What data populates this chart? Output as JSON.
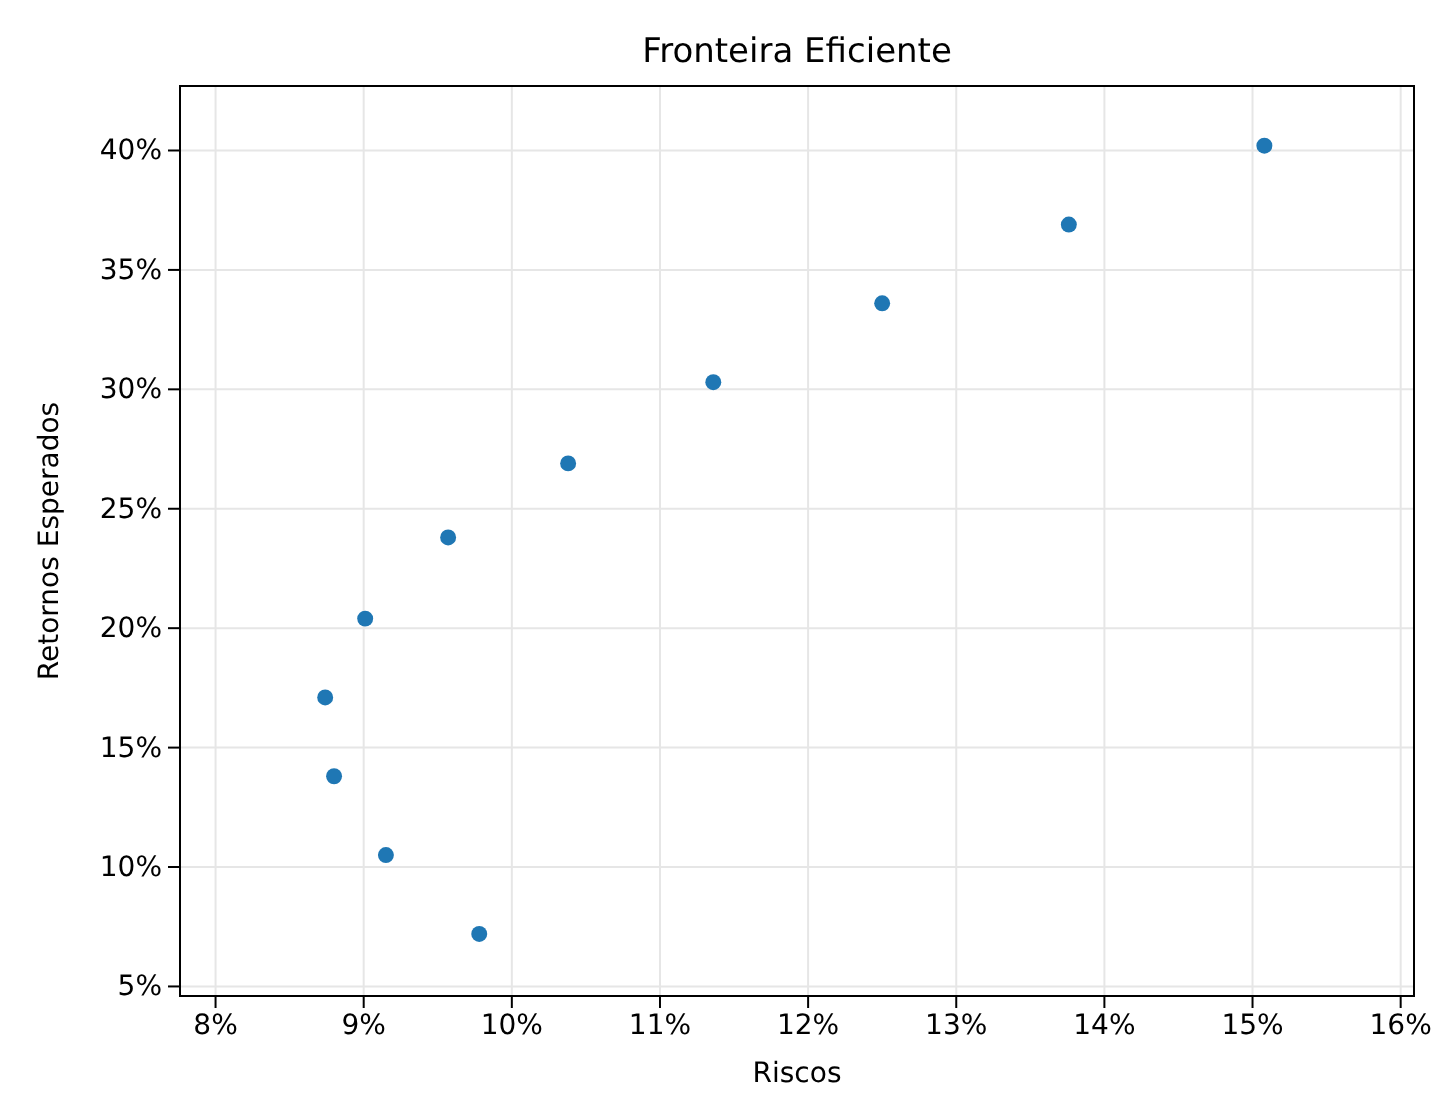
{
  "chart_data": {
    "type": "scatter",
    "title": "Fronteira Eficiente",
    "xlabel": "Riscos",
    "ylabel": "Retornos Esperados",
    "x": [
      15.08,
      13.76,
      12.5,
      11.36,
      10.38,
      9.57,
      9.01,
      8.74,
      8.8,
      9.15,
      9.78
    ],
    "values": [
      40.2,
      36.9,
      33.6,
      30.3,
      26.9,
      23.8,
      20.4,
      17.1,
      13.8,
      10.5,
      7.2
    ],
    "color": "#1f77b4",
    "marker": "circle",
    "grid": true,
    "xlim": [
      7.76,
      16.09
    ],
    "xticks": [
      {
        "value": 8,
        "label": "8%"
      },
      {
        "value": 9,
        "label": "9%"
      },
      {
        "value": 10,
        "label": "10%"
      },
      {
        "value": 11,
        "label": "11%"
      },
      {
        "value": 12,
        "label": "12%"
      },
      {
        "value": 13,
        "label": "13%"
      },
      {
        "value": 14,
        "label": "14%"
      },
      {
        "value": 15,
        "label": "15%"
      },
      {
        "value": 16,
        "label": "16%"
      }
    ],
    "ylim": [
      4.6,
      42.7
    ],
    "yticks": [
      {
        "value": 5,
        "label": "5%"
      },
      {
        "value": 10,
        "label": "10%"
      },
      {
        "value": 15,
        "label": "15%"
      },
      {
        "value": 20,
        "label": "20%"
      },
      {
        "value": 25,
        "label": "25%"
      },
      {
        "value": 30,
        "label": "30%"
      },
      {
        "value": 35,
        "label": "35%"
      },
      {
        "value": 40,
        "label": "40%"
      }
    ]
  }
}
